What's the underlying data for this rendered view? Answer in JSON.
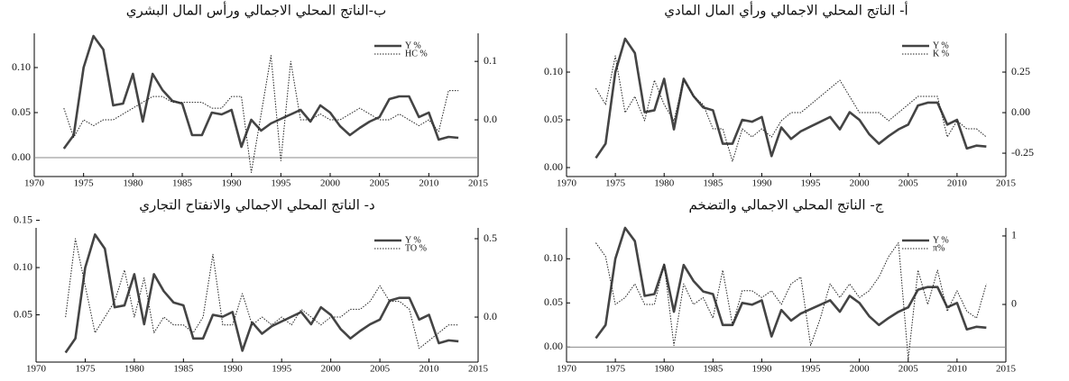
{
  "chart_data": [
    {
      "type": "line",
      "title": "ب-الناتج المحلي الاجمالي ورأس المال البشري",
      "x": [
        1973,
        1974,
        1975,
        1976,
        1977,
        1978,
        1979,
        1980,
        1981,
        1982,
        1983,
        1984,
        1985,
        1986,
        1987,
        1988,
        1989,
        1990,
        1991,
        1992,
        1993,
        1994,
        1995,
        1996,
        1997,
        1998,
        1999,
        2000,
        2001,
        2002,
        2003,
        2004,
        2005,
        2006,
        2007,
        2008,
        2009,
        2010,
        2011,
        2012,
        2013
      ],
      "xlim": [
        1970,
        2015
      ],
      "xticks": [
        1970,
        1975,
        1980,
        1985,
        1990,
        1995,
        2000,
        2005,
        2010,
        2015
      ],
      "ylim": [
        -0.021,
        0.138
      ],
      "yticks": [
        {
          "value": 0,
          "label": "0.00"
        },
        {
          "value": 0.05,
          "label": "0.05"
        },
        {
          "value": 0.1,
          "label": "0.10"
        }
      ],
      "y2lim": [
        -0.097,
        0.148
      ],
      "y2ticks": [
        {
          "value": 0,
          "label": "0.0"
        },
        {
          "value": 0.1,
          "label": "0.1"
        }
      ],
      "zero_line": true,
      "legend": "upper right",
      "series": [
        {
          "name": "Y %",
          "color": "#444444",
          "values": [
            0.01,
            0.025,
            0.1,
            0.135,
            0.12,
            0.058,
            0.06,
            0.093,
            0.04,
            0.093,
            0.075,
            0.063,
            0.06,
            0.025,
            0.025,
            0.05,
            0.048,
            0.053,
            0.012,
            0.042,
            0.03,
            0.038,
            0.043,
            0.048,
            0.053,
            0.04,
            0.058,
            0.05,
            0.035,
            0.025,
            0.033,
            0.04,
            0.045,
            0.065,
            0.068,
            0.068,
            0.045,
            0.05,
            0.02,
            0.023,
            0.022
          ]
        },
        {
          "name": "HC %",
          "color": "#222222",
          "axis": "y2",
          "values": [
            0.02,
            -0.03,
            0.0,
            -0.01,
            0.0,
            0.0,
            0.01,
            0.02,
            0.03,
            0.04,
            0.04,
            0.03,
            0.03,
            0.03,
            0.03,
            0.02,
            0.02,
            0.04,
            0.04,
            -0.09,
            0.01,
            0.11,
            -0.07,
            0.1,
            0.0,
            0.0,
            0.01,
            0.0,
            0.0,
            0.01,
            0.02,
            0.01,
            0.0,
            0.0,
            0.01,
            0.0,
            -0.01,
            0.0,
            -0.02,
            0.05,
            0.05
          ]
        }
      ]
    },
    {
      "type": "line",
      "title": "أ- الناتج المحلي الاجمالي ورأي المال المادي",
      "x": [
        1973,
        1974,
        1975,
        1976,
        1977,
        1978,
        1979,
        1980,
        1981,
        1982,
        1983,
        1984,
        1985,
        1986,
        1987,
        1988,
        1989,
        1990,
        1991,
        1992,
        1993,
        1994,
        1995,
        1996,
        1997,
        1998,
        1999,
        2000,
        2001,
        2002,
        2003,
        2004,
        2005,
        2006,
        2007,
        2008,
        2009,
        2010,
        2011,
        2012,
        2013
      ],
      "xlim": [
        1970,
        2015
      ],
      "xticks": [
        1970,
        1975,
        1980,
        1985,
        1990,
        1995,
        2000,
        2005,
        2010,
        2015
      ],
      "ylim": [
        -0.0094,
        0.1406
      ],
      "yticks": [
        {
          "value": 0,
          "label": "0.00"
        },
        {
          "value": 0.05,
          "label": "0.05"
        },
        {
          "value": 0.1,
          "label": "0.10"
        }
      ],
      "y2lim": [
        -0.394,
        0.489
      ],
      "y2ticks": [
        {
          "value": -0.25,
          "label": "-0.25"
        },
        {
          "value": 0,
          "label": "0.00"
        },
        {
          "value": 0.25,
          "label": "0.25"
        }
      ],
      "zero_line": false,
      "legend": "upper right",
      "series": [
        {
          "name": "Y %",
          "color": "#444444",
          "values": [
            0.01,
            0.025,
            0.1,
            0.135,
            0.12,
            0.058,
            0.06,
            0.093,
            0.04,
            0.093,
            0.075,
            0.063,
            0.06,
            0.025,
            0.025,
            0.05,
            0.048,
            0.053,
            0.012,
            0.042,
            0.03,
            0.038,
            0.043,
            0.048,
            0.053,
            0.04,
            0.058,
            0.05,
            0.035,
            0.025,
            0.033,
            0.04,
            0.045,
            0.065,
            0.068,
            0.068,
            0.045,
            0.05,
            0.02,
            0.023,
            0.022
          ]
        },
        {
          "name": "K %",
          "color": "#222222",
          "axis": "y2",
          "values": [
            0.15,
            0.05,
            0.35,
            0.0,
            0.1,
            -0.05,
            0.2,
            0.05,
            -0.05,
            0.2,
            0.1,
            0.05,
            -0.1,
            -0.1,
            -0.3,
            -0.1,
            -0.15,
            -0.1,
            -0.15,
            -0.05,
            0.0,
            0.0,
            0.05,
            0.1,
            0.15,
            0.2,
            0.1,
            0.0,
            0.0,
            0.0,
            -0.05,
            0.0,
            0.05,
            0.1,
            0.1,
            0.1,
            -0.15,
            -0.05,
            -0.1,
            -0.1,
            -0.15
          ]
        }
      ]
    },
    {
      "type": "line",
      "title": "د- الناتج المحلي الاجمالي والانفتاح التجاري",
      "x": [
        1973,
        1974,
        1975,
        1976,
        1977,
        1978,
        1979,
        1980,
        1981,
        1982,
        1983,
        1984,
        1985,
        1986,
        1987,
        1988,
        1989,
        1990,
        1991,
        1992,
        1993,
        1994,
        1995,
        1996,
        1997,
        1998,
        1999,
        2000,
        2001,
        2002,
        2003,
        2004,
        2005,
        2006,
        2007,
        2008,
        2009,
        2010,
        2011,
        2012,
        2013
      ],
      "xlim": [
        1970,
        2015
      ],
      "xticks": [
        1970,
        1975,
        1980,
        1985,
        1990,
        1995,
        2000,
        2005,
        2010,
        2015
      ],
      "ylim": [
        0.0,
        0.142
      ],
      "yticks": [
        {
          "value": 0.05,
          "label": "0.05"
        },
        {
          "value": 0.1,
          "label": "0.10"
        },
        {
          "value": 0.15,
          "label": "0.15"
        }
      ],
      "y2lim": [
        -0.287,
        0.569
      ],
      "y2ticks": [
        {
          "value": 0,
          "label": "0.0"
        },
        {
          "value": 0.5,
          "label": "0.5"
        }
      ],
      "zero_line": false,
      "legend": "upper right",
      "series": [
        {
          "name": "Y %",
          "color": "#444444",
          "values": [
            0.01,
            0.025,
            0.1,
            0.135,
            0.12,
            0.058,
            0.06,
            0.093,
            0.04,
            0.093,
            0.075,
            0.063,
            0.06,
            0.025,
            0.025,
            0.05,
            0.048,
            0.053,
            0.012,
            0.042,
            0.03,
            0.038,
            0.043,
            0.048,
            0.053,
            0.04,
            0.058,
            0.05,
            0.035,
            0.025,
            0.033,
            0.04,
            0.045,
            0.065,
            0.068,
            0.068,
            0.045,
            0.05,
            0.02,
            0.023,
            0.022
          ]
        },
        {
          "name": "TO %",
          "color": "#222222",
          "axis": "y2",
          "values": [
            0.0,
            0.5,
            0.2,
            -0.1,
            0.0,
            0.1,
            0.3,
            0.0,
            0.25,
            -0.1,
            0.0,
            -0.05,
            -0.05,
            -0.1,
            0.0,
            0.4,
            -0.05,
            -0.05,
            0.15,
            -0.05,
            0.0,
            -0.05,
            0.0,
            -0.05,
            0.05,
            0.0,
            -0.05,
            0.0,
            0.0,
            0.05,
            0.05,
            0.1,
            0.2,
            0.1,
            0.1,
            0.05,
            -0.2,
            -0.15,
            -0.1,
            -0.05,
            -0.05
          ]
        }
      ]
    },
    {
      "type": "line",
      "title": "ج- الناتج المحلي الاجمالي والتضخم",
      "x": [
        1973,
        1974,
        1975,
        1976,
        1977,
        1978,
        1979,
        1980,
        1981,
        1982,
        1983,
        1984,
        1985,
        1986,
        1987,
        1988,
        1989,
        1990,
        1991,
        1992,
        1993,
        1994,
        1995,
        1996,
        1997,
        1998,
        1999,
        2000,
        2001,
        2002,
        2003,
        2004,
        2005,
        2006,
        2007,
        2008,
        2009,
        2010,
        2011,
        2012,
        2013
      ],
      "xlim": [
        1970,
        2015
      ],
      "xticks": [
        1970,
        1975,
        1980,
        1985,
        1990,
        1995,
        2000,
        2005,
        2010,
        2015
      ],
      "ylim": [
        -0.017,
        0.135
      ],
      "yticks": [
        {
          "value": 0,
          "label": "0.00"
        },
        {
          "value": 0.05,
          "label": "0.05"
        },
        {
          "value": 0.1,
          "label": "0.10"
        }
      ],
      "y2lim": [
        -0.842,
        1.118
      ],
      "y2ticks": [
        0,
        1
      ],
      "zero_line": true,
      "legend": "upper right",
      "series": [
        {
          "name": "Y %",
          "color": "#444444",
          "values": [
            0.01,
            0.025,
            0.1,
            0.135,
            0.12,
            0.058,
            0.06,
            0.093,
            0.04,
            0.093,
            0.075,
            0.063,
            0.06,
            0.025,
            0.025,
            0.05,
            0.048,
            0.053,
            0.012,
            0.042,
            0.03,
            0.038,
            0.043,
            0.048,
            0.053,
            0.04,
            0.058,
            0.05,
            0.035,
            0.025,
            0.033,
            0.04,
            0.045,
            0.065,
            0.068,
            0.068,
            0.045,
            0.05,
            0.02,
            0.023,
            0.022
          ]
        },
        {
          "name": "π%",
          "color": "#222222",
          "axis": "y2",
          "values": [
            0.9,
            0.7,
            0.0,
            0.1,
            0.3,
            0.0,
            0.0,
            0.6,
            -0.6,
            0.3,
            0.0,
            0.1,
            -0.2,
            0.5,
            -0.3,
            0.2,
            0.2,
            0.1,
            0.2,
            0.0,
            0.3,
            0.4,
            -0.6,
            -0.2,
            0.3,
            0.1,
            0.3,
            0.1,
            0.2,
            0.4,
            0.7,
            0.9,
            -0.8,
            0.5,
            0.0,
            0.5,
            -0.1,
            0.2,
            -0.1,
            -0.2,
            0.3
          ]
        }
      ]
    }
  ]
}
